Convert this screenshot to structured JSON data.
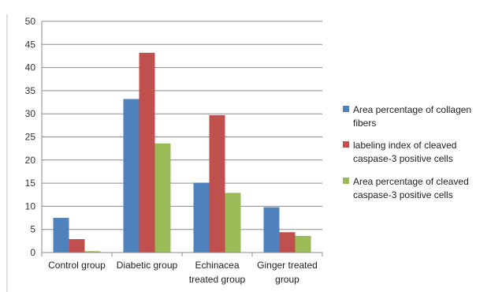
{
  "chart_data": {
    "type": "bar",
    "title": "",
    "xlabel": "",
    "ylabel": "",
    "ylim": [
      0,
      50
    ],
    "yticks": [
      0,
      5,
      10,
      15,
      20,
      25,
      30,
      35,
      40,
      45,
      50
    ],
    "grid": true,
    "legend_position": "right",
    "categories": [
      [
        "Control group"
      ],
      [
        "Diabetic group"
      ],
      [
        "Echinacea",
        "treated group"
      ],
      [
        "Ginger treated",
        "group"
      ]
    ],
    "series": [
      {
        "name": [
          "Area percentage of collagen",
          "fibers"
        ],
        "color": "#4F81BD",
        "values": [
          7.5,
          33.2,
          15.1,
          9.8
        ]
      },
      {
        "name": [
          "labeling index of cleaved",
          "caspase-3 positive cells"
        ],
        "color": "#C0504D",
        "values": [
          2.9,
          43.2,
          29.7,
          4.4
        ]
      },
      {
        "name": [
          "Area percentage of cleaved",
          "caspase-3 positive cells"
        ],
        "color": "#9BBB59",
        "values": [
          0.3,
          23.6,
          12.9,
          3.6
        ]
      }
    ]
  }
}
